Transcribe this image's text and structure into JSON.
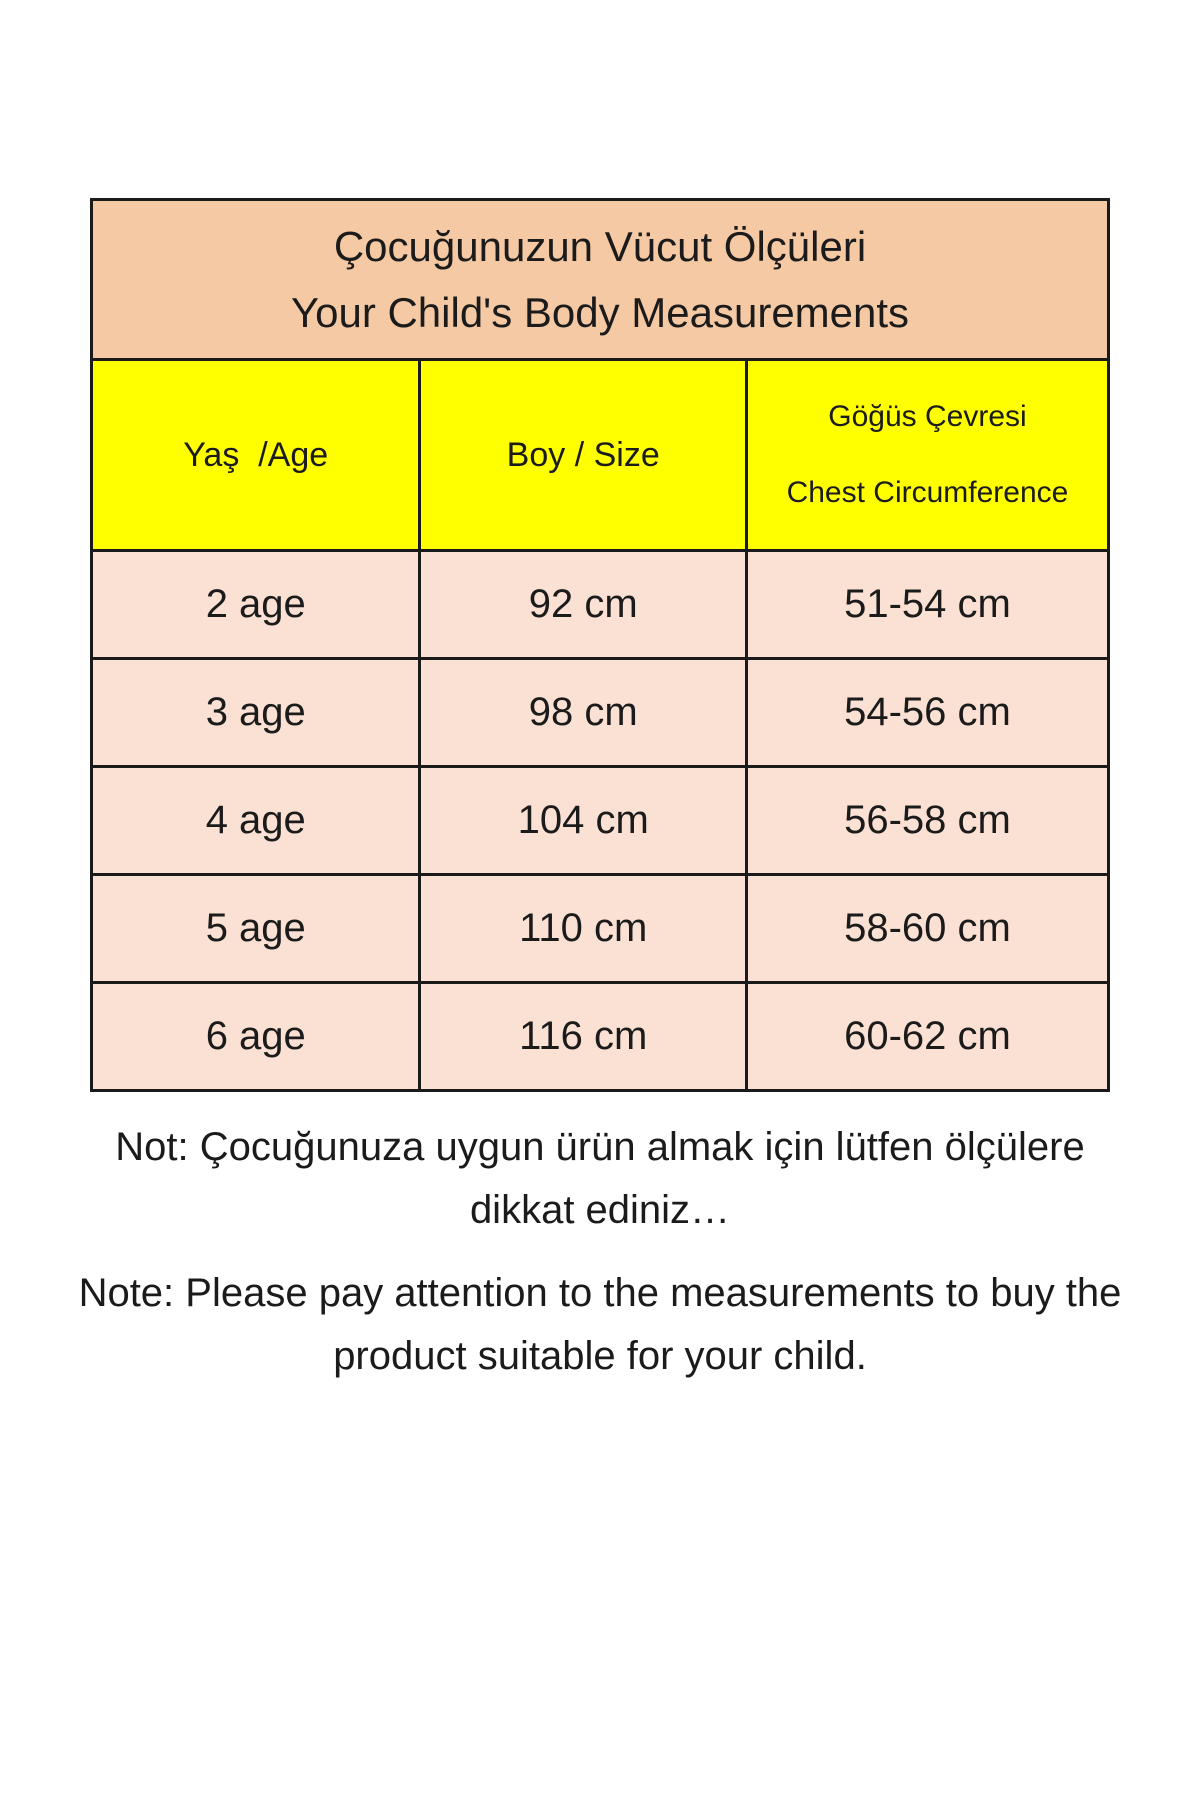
{
  "colors": {
    "page-bg": "#ffffff",
    "title-bg": "#f5c9a4",
    "header-bg": "#ffff00",
    "row-bg": "#fbe1d4",
    "border": "#1a1a1a",
    "text": "#1b1b1b"
  },
  "table": {
    "title_lines": [
      "Çocuğunuzun Vücut Ölçüleri",
      "Your Child's Body Measurements"
    ],
    "columns": [
      {
        "label": "Yaş  /Age"
      },
      {
        "label": "Boy / Size"
      },
      {
        "label_lines": [
          "Göğüs Çevresi",
          "Chest Circumference"
        ]
      }
    ],
    "rows": [
      {
        "age": "2 age",
        "size": "92 cm",
        "chest": "51-54 cm"
      },
      {
        "age": "3 age",
        "size": "98 cm",
        "chest": "54-56 cm"
      },
      {
        "age": "4 age",
        "size": "104 cm",
        "chest": "56-58 cm"
      },
      {
        "age": "5 age",
        "size": "110 cm",
        "chest": "58-60 cm"
      },
      {
        "age": "6 age",
        "size": "116 cm",
        "chest": "60-62 cm"
      }
    ]
  },
  "notes": {
    "turkish": "Not: Çocuğunuza uygun ürün almak için lütfen ölçülere dikkat ediniz…",
    "english": "Note: Please pay attention to the measurements to buy the product suitable for your child."
  }
}
